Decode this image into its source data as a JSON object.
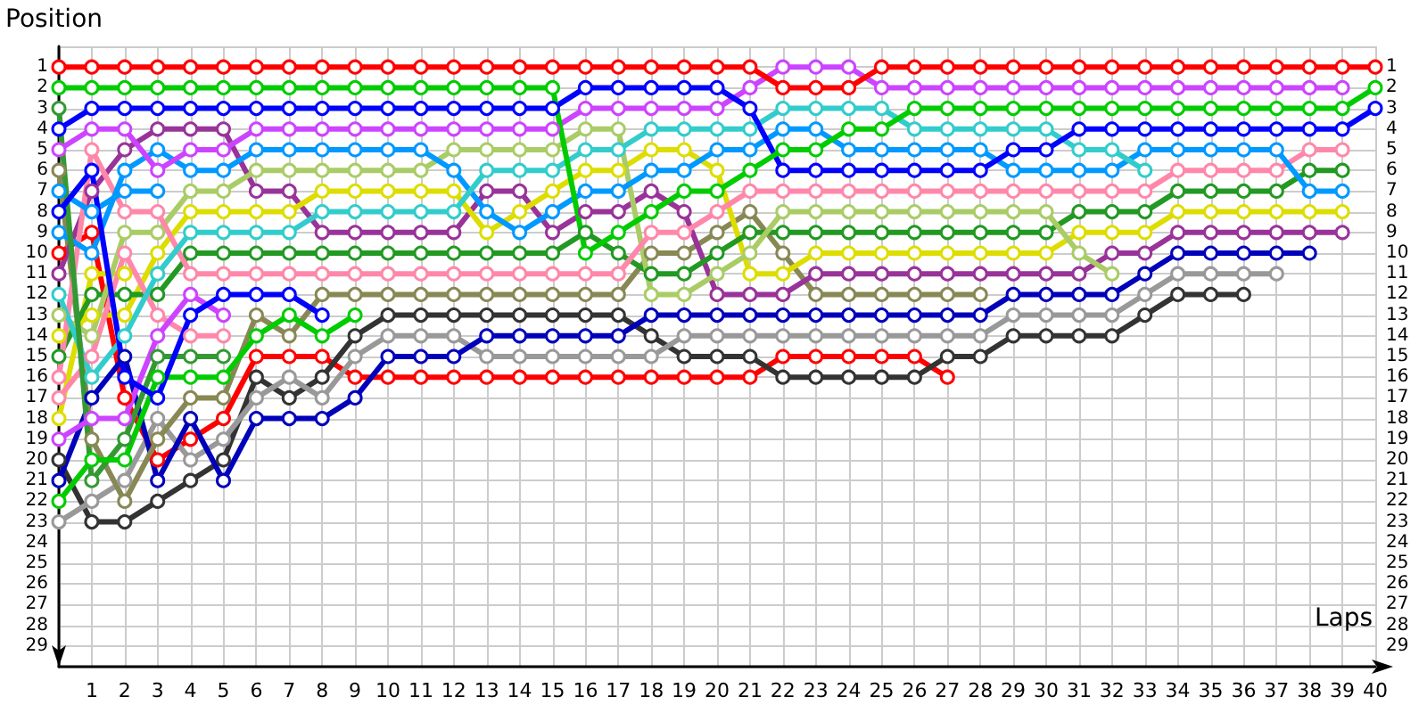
{
  "chart_data": {
    "type": "line",
    "xlabel": "Laps",
    "ylabel": "Position",
    "x": [
      0,
      1,
      2,
      3,
      4,
      5,
      6,
      7,
      8,
      9,
      10,
      11,
      12,
      13,
      14,
      15,
      16,
      17,
      18,
      19,
      20,
      21,
      22,
      23,
      24,
      25,
      26,
      27,
      28,
      29,
      30,
      31,
      32,
      33,
      34,
      35,
      36,
      37,
      38,
      39,
      40
    ],
    "xlim": [
      0,
      40
    ],
    "xticks": [
      1,
      2,
      3,
      4,
      5,
      6,
      7,
      8,
      9,
      10,
      11,
      12,
      13,
      14,
      15,
      16,
      17,
      18,
      19,
      20,
      21,
      22,
      23,
      24,
      25,
      26,
      27,
      28,
      29,
      30,
      31,
      32,
      33,
      34,
      35,
      36,
      37,
      38,
      39,
      40
    ],
    "ylim": [
      30,
      0
    ],
    "yticks": [
      1,
      2,
      3,
      4,
      5,
      6,
      7,
      8,
      9,
      10,
      11,
      12,
      13,
      14,
      15,
      16,
      17,
      18,
      19,
      20,
      21,
      22,
      23,
      24,
      25,
      26,
      27,
      28,
      29
    ],
    "y2lim": [
      30,
      0
    ],
    "y2ticks": [
      1,
      2,
      3,
      4,
      5,
      6,
      7,
      8,
      9,
      10,
      11,
      12,
      13,
      14,
      15,
      16,
      17,
      18,
      19,
      20,
      21,
      22,
      23,
      24,
      25,
      26,
      27,
      28,
      29
    ],
    "grid": true,
    "marker": "circle",
    "line_style": "solid",
    "series": [
      {
        "color": "#ff0000",
        "values": [
          10,
          9,
          17,
          20,
          19,
          18,
          15,
          15,
          15,
          16,
          16,
          16,
          16,
          16,
          16,
          16,
          16,
          16,
          16,
          16,
          16,
          16,
          15,
          15,
          15,
          15,
          15,
          16,
          null,
          null,
          null,
          null,
          null,
          null,
          null,
          null,
          null,
          null,
          null,
          null,
          null
        ]
      },
      {
        "color": "#333333",
        "values": [
          20,
          23,
          23,
          22,
          21,
          20,
          16,
          17,
          16,
          14,
          13,
          13,
          13,
          13,
          13,
          13,
          13,
          13,
          14,
          15,
          15,
          15,
          16,
          16,
          16,
          16,
          16,
          15,
          15,
          14,
          14,
          14,
          14,
          13,
          12,
          12,
          12,
          null,
          null,
          null,
          null
        ]
      },
      {
        "color": "#999999",
        "values": [
          23,
          22,
          21,
          18,
          20,
          19,
          17,
          16,
          17,
          15,
          14,
          14,
          14,
          15,
          15,
          15,
          15,
          15,
          15,
          14,
          14,
          14,
          14,
          14,
          14,
          14,
          14,
          14,
          14,
          13,
          13,
          13,
          13,
          12,
          11,
          11,
          11,
          11,
          null,
          null,
          null
        ]
      },
      {
        "color": "#0000bb",
        "values": [
          21,
          17,
          15,
          21,
          18,
          21,
          18,
          18,
          18,
          17,
          15,
          15,
          15,
          14,
          14,
          14,
          14,
          14,
          13,
          13,
          13,
          13,
          13,
          13,
          13,
          13,
          13,
          13,
          13,
          12,
          12,
          12,
          12,
          11,
          10,
          10,
          10,
          10,
          10,
          null,
          null
        ]
      },
      {
        "color": "#888855",
        "values": [
          6,
          19,
          22,
          19,
          17,
          17,
          13,
          14,
          12,
          12,
          12,
          12,
          12,
          12,
          12,
          12,
          12,
          12,
          10,
          10,
          9,
          8,
          10,
          12,
          12,
          12,
          12,
          12,
          12,
          null,
          null,
          null,
          null,
          null,
          null,
          null,
          null,
          null,
          null,
          null,
          null
        ]
      },
      {
        "color": "#993399",
        "values": [
          11,
          7,
          5,
          4,
          4,
          4,
          7,
          7,
          9,
          9,
          9,
          9,
          9,
          7,
          7,
          9,
          8,
          8,
          7,
          8,
          12,
          12,
          12,
          11,
          11,
          11,
          11,
          11,
          11,
          11,
          11,
          11,
          10,
          10,
          9,
          9,
          9,
          9,
          9,
          9,
          null
        ]
      },
      {
        "color": "#dddd00",
        "values": [
          14,
          13,
          13,
          10,
          8,
          8,
          8,
          8,
          7,
          7,
          7,
          7,
          7,
          9,
          8,
          7,
          6,
          6,
          5,
          5,
          6,
          11,
          11,
          10,
          10,
          10,
          10,
          10,
          10,
          10,
          10,
          9,
          9,
          9,
          8,
          8,
          8,
          8,
          8,
          8,
          null
        ]
      },
      {
        "color": "#dddd00",
        "values": [
          18,
          11,
          11,
          null,
          null,
          null,
          null,
          null,
          null,
          null,
          null,
          null,
          null,
          null,
          null,
          null,
          null,
          null,
          null,
          null,
          null,
          null,
          null,
          null,
          null,
          null,
          null,
          null,
          null,
          null,
          null,
          null,
          null,
          null,
          null,
          null,
          null,
          null,
          null,
          null,
          null
        ]
      },
      {
        "color": "#229922",
        "values": [
          15,
          12,
          12,
          12,
          10,
          10,
          10,
          10,
          10,
          10,
          10,
          10,
          10,
          10,
          10,
          10,
          9,
          10,
          11,
          11,
          10,
          9,
          9,
          9,
          9,
          9,
          9,
          9,
          9,
          9,
          9,
          8,
          8,
          8,
          7,
          7,
          7,
          7,
          6,
          6,
          null
        ]
      },
      {
        "color": "#aacc66",
        "values": [
          13,
          14,
          9,
          9,
          7,
          7,
          6,
          6,
          6,
          6,
          6,
          6,
          5,
          5,
          5,
          5,
          4,
          4,
          12,
          12,
          11,
          10,
          8,
          8,
          8,
          8,
          8,
          8,
          8,
          8,
          8,
          10,
          11,
          null,
          null,
          null,
          null,
          null,
          null,
          null,
          null
        ]
      },
      {
        "color": "#ff88aa",
        "values": [
          16,
          5,
          8,
          8,
          11,
          11,
          11,
          11,
          11,
          11,
          11,
          11,
          11,
          11,
          11,
          11,
          11,
          11,
          9,
          9,
          8,
          7,
          7,
          7,
          7,
          7,
          7,
          7,
          7,
          7,
          7,
          7,
          7,
          7,
          6,
          6,
          6,
          6,
          5,
          5,
          null
        ]
      },
      {
        "color": "#ff88aa",
        "values": [
          17,
          15,
          10,
          13,
          14,
          14,
          null,
          null,
          null,
          null,
          null,
          null,
          null,
          null,
          null,
          null,
          null,
          null,
          null,
          null,
          null,
          null,
          null,
          null,
          null,
          null,
          null,
          null,
          null,
          null,
          null,
          null,
          null,
          null,
          null,
          null,
          null,
          null,
          null,
          null,
          null
        ]
      },
      {
        "color": "#0099ff",
        "values": [
          7,
          8,
          7,
          7,
          null,
          null,
          null,
          null,
          null,
          null,
          null,
          null,
          null,
          null,
          null,
          null,
          null,
          null,
          null,
          null,
          null,
          null,
          null,
          null,
          null,
          null,
          null,
          null,
          null,
          null,
          null,
          null,
          null,
          null,
          null,
          null,
          null,
          null,
          null,
          null,
          null
        ]
      },
      {
        "color": "#0099ff",
        "values": [
          9,
          10,
          6,
          5,
          6,
          6,
          5,
          5,
          5,
          5,
          5,
          5,
          6,
          8,
          9,
          8,
          7,
          7,
          6,
          6,
          5,
          5,
          4,
          4,
          5,
          5,
          5,
          5,
          5,
          6,
          6,
          6,
          6,
          5,
          5,
          5,
          5,
          5,
          7,
          7,
          null
        ]
      },
      {
        "color": "#33cccc",
        "values": [
          12,
          16,
          14,
          11,
          9,
          9,
          9,
          9,
          8,
          8,
          8,
          8,
          8,
          6,
          6,
          6,
          5,
          5,
          4,
          4,
          4,
          4,
          3,
          3,
          3,
          3,
          4,
          4,
          4,
          4,
          4,
          5,
          5,
          6,
          null,
          null,
          null,
          null,
          null,
          null,
          null
        ]
      },
      {
        "color": "#339933",
        "values": [
          3,
          21,
          19,
          15,
          15,
          15,
          null,
          null,
          null,
          null,
          null,
          null,
          null,
          null,
          null,
          null,
          null,
          null,
          null,
          null,
          null,
          null,
          null,
          null,
          null,
          null,
          null,
          null,
          null,
          null,
          null,
          null,
          null,
          null,
          null,
          null,
          null,
          null,
          null,
          null,
          null
        ]
      },
      {
        "color": "#00cc00",
        "values": [
          22,
          20,
          20,
          16,
          16,
          16,
          14,
          13,
          14,
          13,
          null,
          null,
          null,
          null,
          null,
          null,
          null,
          null,
          null,
          null,
          null,
          null,
          null,
          null,
          null,
          null,
          null,
          null,
          null,
          null,
          null,
          null,
          null,
          null,
          null,
          null,
          null,
          null,
          null,
          null,
          null
        ]
      },
      {
        "color": "#cc44ff",
        "values": [
          19,
          18,
          18,
          14,
          12,
          13,
          null,
          null,
          null,
          null,
          null,
          null,
          null,
          null,
          null,
          null,
          null,
          null,
          null,
          null,
          null,
          null,
          null,
          null,
          null,
          null,
          null,
          null,
          null,
          null,
          null,
          null,
          null,
          null,
          null,
          null,
          null,
          null,
          null,
          null,
          null
        ]
      },
      {
        "color": "#0000ff",
        "values": [
          8,
          6,
          16,
          17,
          13,
          12,
          12,
          12,
          13,
          null,
          null,
          null,
          null,
          null,
          null,
          null,
          null,
          null,
          null,
          null,
          null,
          null,
          null,
          null,
          null,
          null,
          null,
          null,
          null,
          null,
          null,
          null,
          null,
          null,
          null,
          null,
          null,
          null,
          null,
          null,
          null
        ]
      },
      {
        "color": "#cc44ff",
        "values": [
          5,
          4,
          4,
          6,
          5,
          5,
          4,
          4,
          4,
          4,
          4,
          4,
          4,
          4,
          4,
          4,
          3,
          3,
          3,
          3,
          3,
          2,
          1,
          1,
          1,
          2,
          2,
          2,
          2,
          2,
          2,
          2,
          2,
          2,
          2,
          2,
          2,
          2,
          2,
          2,
          null
        ]
      },
      {
        "color": "#0000ff",
        "values": [
          4,
          3,
          3,
          3,
          3,
          3,
          3,
          3,
          3,
          3,
          3,
          3,
          3,
          3,
          3,
          3,
          2,
          2,
          2,
          2,
          2,
          3,
          6,
          6,
          6,
          6,
          6,
          6,
          6,
          5,
          5,
          4,
          4,
          4,
          4,
          4,
          4,
          4,
          4,
          4,
          3
        ]
      },
      {
        "color": "#00cc00",
        "values": [
          2,
          2,
          2,
          2,
          2,
          2,
          2,
          2,
          2,
          2,
          2,
          2,
          2,
          2,
          2,
          2,
          10,
          9,
          8,
          7,
          7,
          6,
          5,
          5,
          4,
          4,
          3,
          3,
          3,
          3,
          3,
          3,
          3,
          3,
          3,
          3,
          3,
          3,
          3,
          3,
          2
        ]
      },
      {
        "color": "#ff0000",
        "values": [
          1,
          1,
          1,
          1,
          1,
          1,
          1,
          1,
          1,
          1,
          1,
          1,
          1,
          1,
          1,
          1,
          1,
          1,
          1,
          1,
          1,
          1,
          2,
          2,
          2,
          1,
          1,
          1,
          1,
          1,
          1,
          1,
          1,
          1,
          1,
          1,
          1,
          1,
          1,
          1,
          1
        ]
      }
    ]
  }
}
